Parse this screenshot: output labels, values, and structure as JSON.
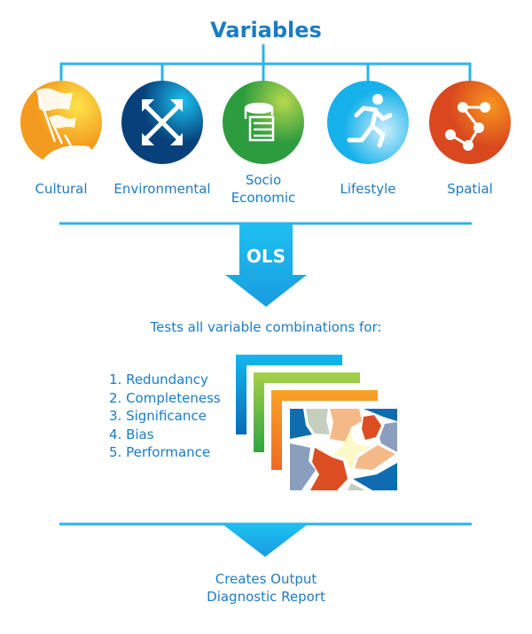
{
  "title": "Variables",
  "variables": [
    {
      "label": "Cultural",
      "icon": "flags-icon",
      "color": "#f7a823"
    },
    {
      "label": "Environmental",
      "icon": "arrows-converge-icon",
      "color": "#0f6cb0"
    },
    {
      "label": "Socio\nEconomic",
      "icon": "coins-icon",
      "color": "#4cae3f"
    },
    {
      "label": "Lifestyle",
      "icon": "runner-icon",
      "color": "#3fb8ec"
    },
    {
      "label": "Spatial",
      "icon": "network-nodes-icon",
      "color": "#e25a22"
    }
  ],
  "ols_label": "OLS",
  "tests_heading": "Tests all variable combinations for:",
  "tests": [
    "1. Redundancy",
    "2. Completeness",
    "3. Significance",
    "4. Bias",
    "5. Performance"
  ],
  "output_label": "Creates Output\nDiagnostic Report",
  "colors": {
    "line": "#27b5ea",
    "text": "#1a7cc4",
    "arrow": "#1a9ce0"
  }
}
